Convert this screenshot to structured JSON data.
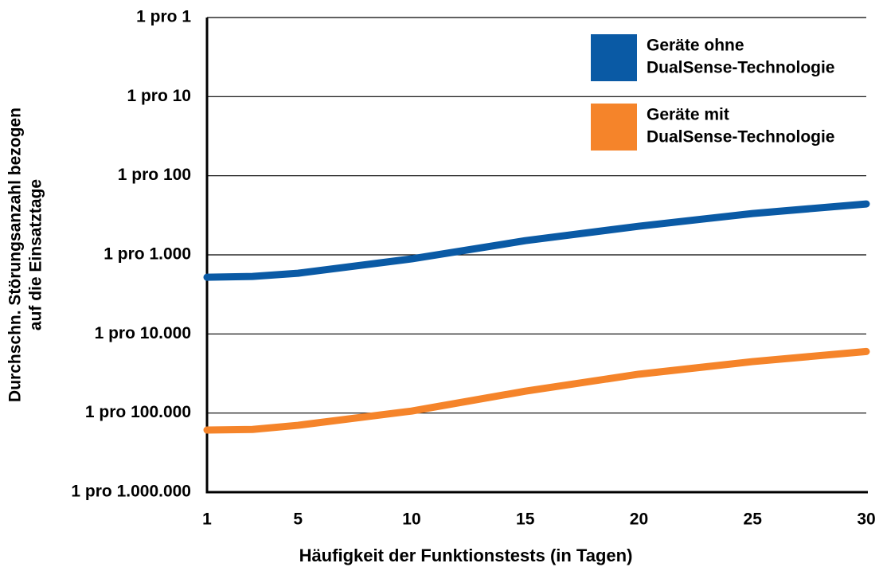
{
  "chart_data": {
    "type": "line",
    "x_label": "Häufigkeit der Funktionstests (in Tagen)",
    "y_label": [
      "Durchschn. Störungsanzahl bezogen",
      "auf die Einsatztage"
    ],
    "x": [
      1,
      3,
      5,
      10,
      15,
      20,
      25,
      30
    ],
    "series": [
      {
        "name": [
          "Geräte ohne",
          "DualSense-Technologie"
        ],
        "color": "#0a5aa5",
        "values": [
          0.000521,
          0.000533,
          0.000585,
          0.00089,
          0.00151,
          0.0023,
          0.00333,
          0.0044
        ]
      },
      {
        "name": [
          "Geräte mit",
          "DualSense-Technologie"
        ],
        "color": "#f5842a",
        "values": [
          6.1e-06,
          6.2e-06,
          7e-06,
          1.06e-05,
          1.89e-05,
          3.1e-05,
          4.47e-05,
          6e-05
        ]
      }
    ],
    "xlim": [
      1,
      30
    ],
    "xticks": [
      1,
      5,
      10,
      15,
      20,
      25,
      30
    ],
    "ylim": [
      1e-06,
      1
    ],
    "ylog": true,
    "yticks": [
      {
        "value": 1,
        "label": "1 pro 1"
      },
      {
        "value": 0.1,
        "label": "1 pro 10"
      },
      {
        "value": 0.01,
        "label": "1 pro 100"
      },
      {
        "value": 0.001,
        "label": "1 pro 1.000"
      },
      {
        "value": 0.0001,
        "label": "1 pro 10.000"
      },
      {
        "value": 1e-05,
        "label": "1 pro 100.000"
      },
      {
        "value": 1e-06,
        "label": "1 pro 1.000.000"
      }
    ],
    "grid": true,
    "legend": "upper right"
  }
}
